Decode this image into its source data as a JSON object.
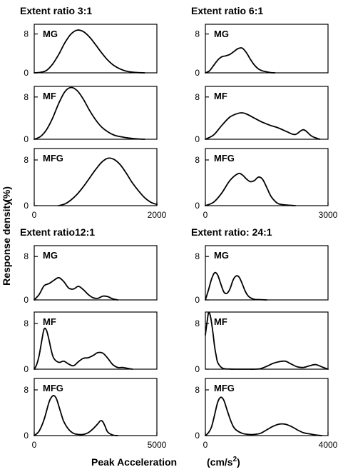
{
  "figure": {
    "ylabel": "Response density",
    "ylabel_unit": "(%)",
    "xlabel": "Peak Acceleration",
    "xlabel_unit": "(cm/s",
    "xlabel_unit_sup": "2",
    "xlabel_unit_close": ")"
  },
  "chart_data": [
    {
      "type": "line",
      "group_title": "Extent ratio  3:1",
      "panel": "MG",
      "xlim": [
        0,
        2000
      ],
      "ylim": [
        0,
        10
      ],
      "yticks": [
        "0",
        "8"
      ],
      "xticks": [],
      "x": [
        0,
        100,
        200,
        300,
        400,
        500,
        600,
        700,
        800,
        900,
        1000,
        1100,
        1200,
        1300,
        1400,
        1500,
        1600,
        1700,
        1800
      ],
      "y": [
        0,
        0.1,
        0.5,
        1.8,
        3.8,
        6.2,
        8.0,
        8.8,
        8.5,
        7.4,
        5.8,
        4.1,
        2.6,
        1.5,
        0.8,
        0.35,
        0.15,
        0.05,
        0
      ]
    },
    {
      "type": "line",
      "group_title": "",
      "panel": "MF",
      "xlim": [
        0,
        2000
      ],
      "ylim": [
        0,
        10
      ],
      "yticks": [
        "0",
        "8"
      ],
      "xticks": [],
      "x": [
        0,
        100,
        200,
        300,
        400,
        500,
        600,
        700,
        800,
        900,
        1000,
        1100,
        1200,
        1300,
        1400,
        1500,
        1600,
        1700,
        1800
      ],
      "y": [
        0,
        0.5,
        1.8,
        4.0,
        6.8,
        9.0,
        9.8,
        9.2,
        7.6,
        5.5,
        3.7,
        2.3,
        1.4,
        0.8,
        0.5,
        0.3,
        0.15,
        0.05,
        0
      ]
    },
    {
      "type": "line",
      "group_title": "",
      "panel": "MFG",
      "xlim": [
        0,
        2000
      ],
      "ylim": [
        0,
        10
      ],
      "yticks": [
        "0",
        "8"
      ],
      "xticks": [
        "0",
        "2000"
      ],
      "x": [
        400,
        500,
        600,
        700,
        800,
        900,
        1000,
        1100,
        1200,
        1300,
        1400,
        1500,
        1600,
        1700,
        1800,
        1900,
        2000
      ],
      "y": [
        0,
        0.3,
        1.0,
        2.0,
        3.3,
        4.8,
        6.3,
        7.6,
        8.3,
        8.1,
        7.2,
        5.7,
        4.0,
        2.6,
        1.4,
        0.6,
        0.2
      ]
    },
    {
      "type": "line",
      "group_title": "Extent ratio  6:1",
      "panel": "MG",
      "xlim": [
        0,
        3000
      ],
      "ylim": [
        0,
        10
      ],
      "yticks": [
        "0",
        "8"
      ],
      "xticks": [],
      "x": [
        0,
        100,
        200,
        300,
        400,
        500,
        600,
        700,
        800,
        900,
        1000,
        1100,
        1200,
        1300,
        1400,
        1500,
        1600,
        1700
      ],
      "y": [
        0,
        0.4,
        1.5,
        2.6,
        3.3,
        3.5,
        3.8,
        4.4,
        5.0,
        5.1,
        4.2,
        2.8,
        1.6,
        0.8,
        0.4,
        0.2,
        0.05,
        0
      ]
    },
    {
      "type": "line",
      "group_title": "",
      "panel": "MF",
      "xlim": [
        0,
        3000
      ],
      "ylim": [
        0,
        10
      ],
      "yticks": [
        "0",
        "8"
      ],
      "xticks": [],
      "x": [
        0,
        200,
        400,
        600,
        800,
        900,
        1000,
        1200,
        1400,
        1600,
        1800,
        2000,
        2200,
        2400,
        2600,
        2800
      ],
      "y": [
        0,
        0.8,
        2.6,
        4.2,
        4.9,
        5.0,
        4.8,
        4.0,
        3.2,
        2.6,
        2.1,
        1.4,
        0.9,
        1.8,
        0.6,
        0
      ]
    },
    {
      "type": "line",
      "group_title": "",
      "panel": "MFG",
      "xlim": [
        0,
        3000
      ],
      "ylim": [
        0,
        10
      ],
      "yticks": [
        "0",
        "8"
      ],
      "xticks": [
        "0",
        "3000"
      ],
      "x": [
        0,
        200,
        400,
        600,
        800,
        900,
        1000,
        1100,
        1200,
        1300,
        1400,
        1500,
        1600,
        1700,
        1800,
        2000,
        2200
      ],
      "y": [
        0,
        0.6,
        2.2,
        4.4,
        5.6,
        5.4,
        4.7,
        4.2,
        4.4,
        5.0,
        4.6,
        3.2,
        1.7,
        0.8,
        0.3,
        0.1,
        0
      ]
    },
    {
      "type": "line",
      "group_title": "Extent ratio12:1",
      "panel": "MG",
      "xlim": [
        0,
        5000
      ],
      "ylim": [
        0,
        10
      ],
      "yticks": [
        "0",
        "8"
      ],
      "xticks": [],
      "x": [
        0,
        200,
        400,
        600,
        800,
        1000,
        1200,
        1400,
        1600,
        1800,
        2000,
        2200,
        2400,
        2600,
        2800,
        3000,
        3200,
        3400
      ],
      "y": [
        0,
        1.0,
        2.6,
        3.0,
        3.6,
        4.1,
        3.4,
        2.2,
        2.0,
        2.5,
        1.9,
        1.0,
        0.4,
        0.3,
        0.7,
        0.6,
        0.2,
        0
      ]
    },
    {
      "type": "line",
      "group_title": "",
      "panel": "MF",
      "xlim": [
        0,
        5000
      ],
      "ylim": [
        0,
        10
      ],
      "yticks": [
        "0",
        "8"
      ],
      "xticks": [],
      "x": [
        0,
        100,
        200,
        300,
        400,
        500,
        600,
        700,
        800,
        1000,
        1200,
        1400,
        1600,
        1800,
        2000,
        2200,
        2400,
        2600,
        2800,
        3000,
        3200,
        3400,
        3600,
        3800,
        4000
      ],
      "y": [
        0,
        0.8,
        2.4,
        4.8,
        7.0,
        6.8,
        5.2,
        3.2,
        1.9,
        1.2,
        1.4,
        0.9,
        0.6,
        1.3,
        1.9,
        2.0,
        2.4,
        2.9,
        2.8,
        1.9,
        0.8,
        0.3,
        0.3,
        0.15,
        0
      ]
    },
    {
      "type": "line",
      "group_title": "",
      "panel": "MFG",
      "xlim": [
        0,
        5000
      ],
      "ylim": [
        0,
        10
      ],
      "yticks": [
        "0",
        "8"
      ],
      "xticks": [
        "0",
        "5000"
      ],
      "x": [
        0,
        200,
        400,
        600,
        700,
        800,
        900,
        1000,
        1100,
        1200,
        1400,
        1600,
        1800,
        2000,
        2200,
        2400,
        2600,
        2700,
        2800,
        2900,
        3000,
        3200,
        3400
      ],
      "y": [
        0,
        0.8,
        2.8,
        5.8,
        6.7,
        7.0,
        6.5,
        5.2,
        3.8,
        2.5,
        1.1,
        0.4,
        0.2,
        0.2,
        0.5,
        1.2,
        2.1,
        2.6,
        2.4,
        1.5,
        0.6,
        0.1,
        0
      ]
    },
    {
      "type": "line",
      "group_title": "Extent ratio: 24:1",
      "panel": "MG",
      "xlim": [
        0,
        4000
      ],
      "ylim": [
        0,
        10
      ],
      "yticks": [
        "0",
        "8"
      ],
      "xticks": [],
      "x": [
        0,
        100,
        200,
        300,
        400,
        500,
        600,
        700,
        800,
        900,
        1000,
        1100,
        1200,
        1300,
        1400,
        1500,
        1600,
        1800,
        2000
      ],
      "y": [
        0,
        1.8,
        3.8,
        5.0,
        4.6,
        3.0,
        1.5,
        1.2,
        2.0,
        3.6,
        4.4,
        4.2,
        3.0,
        1.6,
        0.7,
        0.3,
        0.1,
        0.05,
        0
      ]
    },
    {
      "type": "line",
      "group_title": "",
      "panel": "MF",
      "xlim": [
        0,
        4000
      ],
      "ylim": [
        0,
        10
      ],
      "yticks": [
        "0",
        "8"
      ],
      "xticks": [],
      "x": [
        0,
        50,
        100,
        150,
        200,
        250,
        300,
        350,
        400,
        500,
        600,
        800,
        1000,
        1200,
        1400,
        1600,
        1800,
        2000,
        2200,
        2400,
        2600,
        2800,
        3000,
        3200,
        3400,
        3600,
        3800,
        4000
      ],
      "y": [
        6.0,
        8.0,
        9.8,
        9.6,
        8.2,
        6.2,
        4.0,
        2.4,
        1.2,
        0.4,
        0.1,
        0.02,
        0,
        0,
        0,
        0,
        0.1,
        0.5,
        1.0,
        1.3,
        1.4,
        0.9,
        0.4,
        0.3,
        0.6,
        0.8,
        0.4,
        0
      ]
    },
    {
      "type": "line",
      "group_title": "",
      "panel": "MFG",
      "xlim": [
        0,
        4000
      ],
      "ylim": [
        0,
        10
      ],
      "yticks": [
        "0",
        "8"
      ],
      "xticks": [
        "0",
        "4000"
      ],
      "x": [
        0,
        100,
        200,
        300,
        400,
        500,
        600,
        700,
        800,
        900,
        1000,
        1200,
        1400,
        1600,
        1800,
        2000,
        2200,
        2400,
        2600,
        2800,
        3000,
        3200,
        3400,
        3600,
        3800
      ],
      "y": [
        0,
        0.5,
        1.5,
        3.6,
        5.8,
        6.7,
        6.2,
        4.6,
        3.0,
        1.7,
        1.0,
        0.4,
        0.2,
        0.2,
        0.4,
        1.0,
        1.6,
        2.0,
        2.0,
        1.6,
        1.0,
        0.5,
        0.3,
        0.1,
        0
      ]
    }
  ]
}
